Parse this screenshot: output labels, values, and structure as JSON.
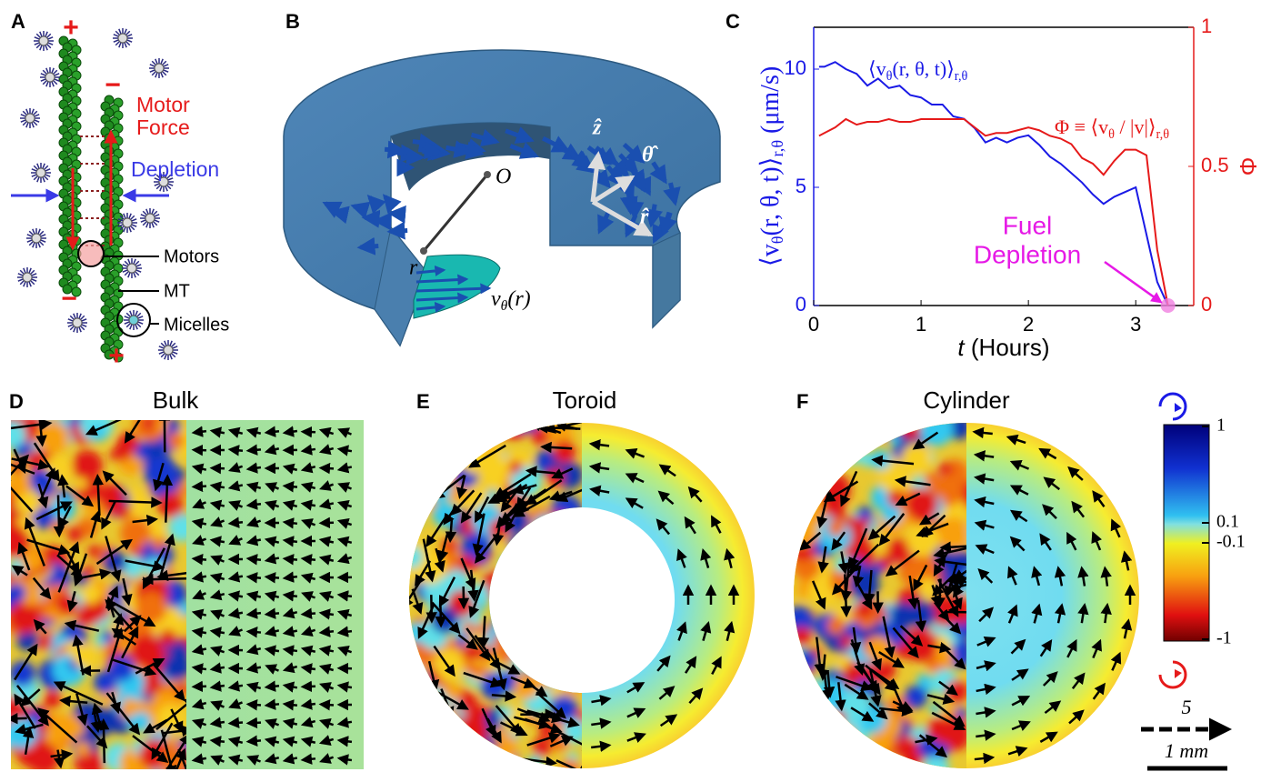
{
  "panel_labels": [
    "A",
    "B",
    "C",
    "D",
    "E",
    "F"
  ],
  "panel_a": {
    "plus_top": "+",
    "minus_top": "−",
    "motor_force": [
      "Motor",
      "Force"
    ],
    "depletion": "Depletion",
    "motors": "Motors",
    "mt": "MT",
    "micelles": "Micelles",
    "minus_bottom": "−",
    "plus_bottom": "+"
  },
  "panel_b": {
    "origin": "O",
    "radius": "r",
    "profile": [
      {
        "text": "v"
      },
      {
        "text": "θ",
        "sub": true
      },
      {
        "text": "(r)"
      }
    ],
    "z_hat": "ẑ",
    "theta_hat": "θ̂",
    "r_hat": "r̂"
  },
  "chart_data": {
    "type": "line",
    "xlabel": [
      {
        "text": "t",
        "italic": true
      },
      {
        "text": " (Hours)"
      }
    ],
    "ylabel": [
      {
        "text": "⟨v"
      },
      {
        "text": "θ",
        "sub": true
      },
      {
        "text": "(r, θ, t)⟩"
      },
      {
        "text": "r,θ",
        "sub": true
      },
      {
        "text": " (μm/s)"
      }
    ],
    "y2label": "Φ",
    "annotations": {
      "velocity": [
        {
          "text": "⟨v"
        },
        {
          "text": "θ",
          "sub": true
        },
        {
          "text": "(r, θ, t)⟩"
        },
        {
          "text": "r,θ",
          "sub": true
        }
      ],
      "order": [
        {
          "text": "Φ ≡ ⟨v"
        },
        {
          "text": "θ",
          "sub": true
        },
        {
          "text": " / |v|⟩"
        },
        {
          "text": "r,θ",
          "sub": true
        }
      ],
      "fuel": [
        "Fuel",
        "Depletion"
      ]
    },
    "x": [
      0.05,
      0.1,
      0.2,
      0.3,
      0.4,
      0.5,
      0.6,
      0.7,
      0.8,
      0.9,
      1.0,
      1.1,
      1.2,
      1.3,
      1.4,
      1.5,
      1.6,
      1.7,
      1.8,
      1.9,
      2.0,
      2.1,
      2.2,
      2.3,
      2.4,
      2.5,
      2.6,
      2.7,
      2.8,
      2.9,
      3.0,
      3.1,
      3.2,
      3.3
    ],
    "series": [
      {
        "color": "#1a1ae6",
        "values": [
          10.1,
          10.1,
          10.3,
          10.0,
          9.8,
          9.3,
          9.6,
          9.2,
          9.3,
          8.9,
          8.8,
          8.5,
          8.5,
          8.0,
          7.9,
          7.5,
          6.9,
          7.1,
          6.9,
          7.1,
          7.2,
          6.8,
          6.3,
          6.0,
          5.6,
          5.2,
          4.7,
          4.3,
          4.6,
          4.8,
          5.0,
          3.0,
          1.0,
          0
        ]
      },
      {
        "color": "#e61a1a",
        "axis": "y2",
        "values": [
          0.61,
          0.62,
          0.64,
          0.67,
          0.65,
          0.66,
          0.66,
          0.67,
          0.66,
          0.66,
          0.67,
          0.67,
          0.67,
          0.67,
          0.67,
          0.64,
          0.61,
          0.62,
          0.62,
          0.63,
          0.64,
          0.63,
          0.61,
          0.6,
          0.58,
          0.53,
          0.51,
          0.47,
          0.52,
          0.56,
          0.56,
          0.54,
          0.2,
          0
        ]
      }
    ],
    "xlim": [
      0,
      3.54
    ],
    "xticks": [
      0,
      1,
      2,
      3
    ],
    "ylim": [
      0,
      11.77
    ],
    "yticks": [
      0,
      5,
      10
    ],
    "y2lim": [
      0,
      1
    ],
    "y2ticks": [
      0,
      0.5,
      1
    ]
  },
  "panel_d": {
    "title": "Bulk"
  },
  "panel_e": {
    "title": "Toroid"
  },
  "panel_f": {
    "title": "Cylinder"
  },
  "colorbar": {
    "ticks": [
      1,
      0.1,
      -0.1,
      -1
    ]
  },
  "scale": {
    "arrow_label": 5,
    "length_label": "1 mm"
  }
}
